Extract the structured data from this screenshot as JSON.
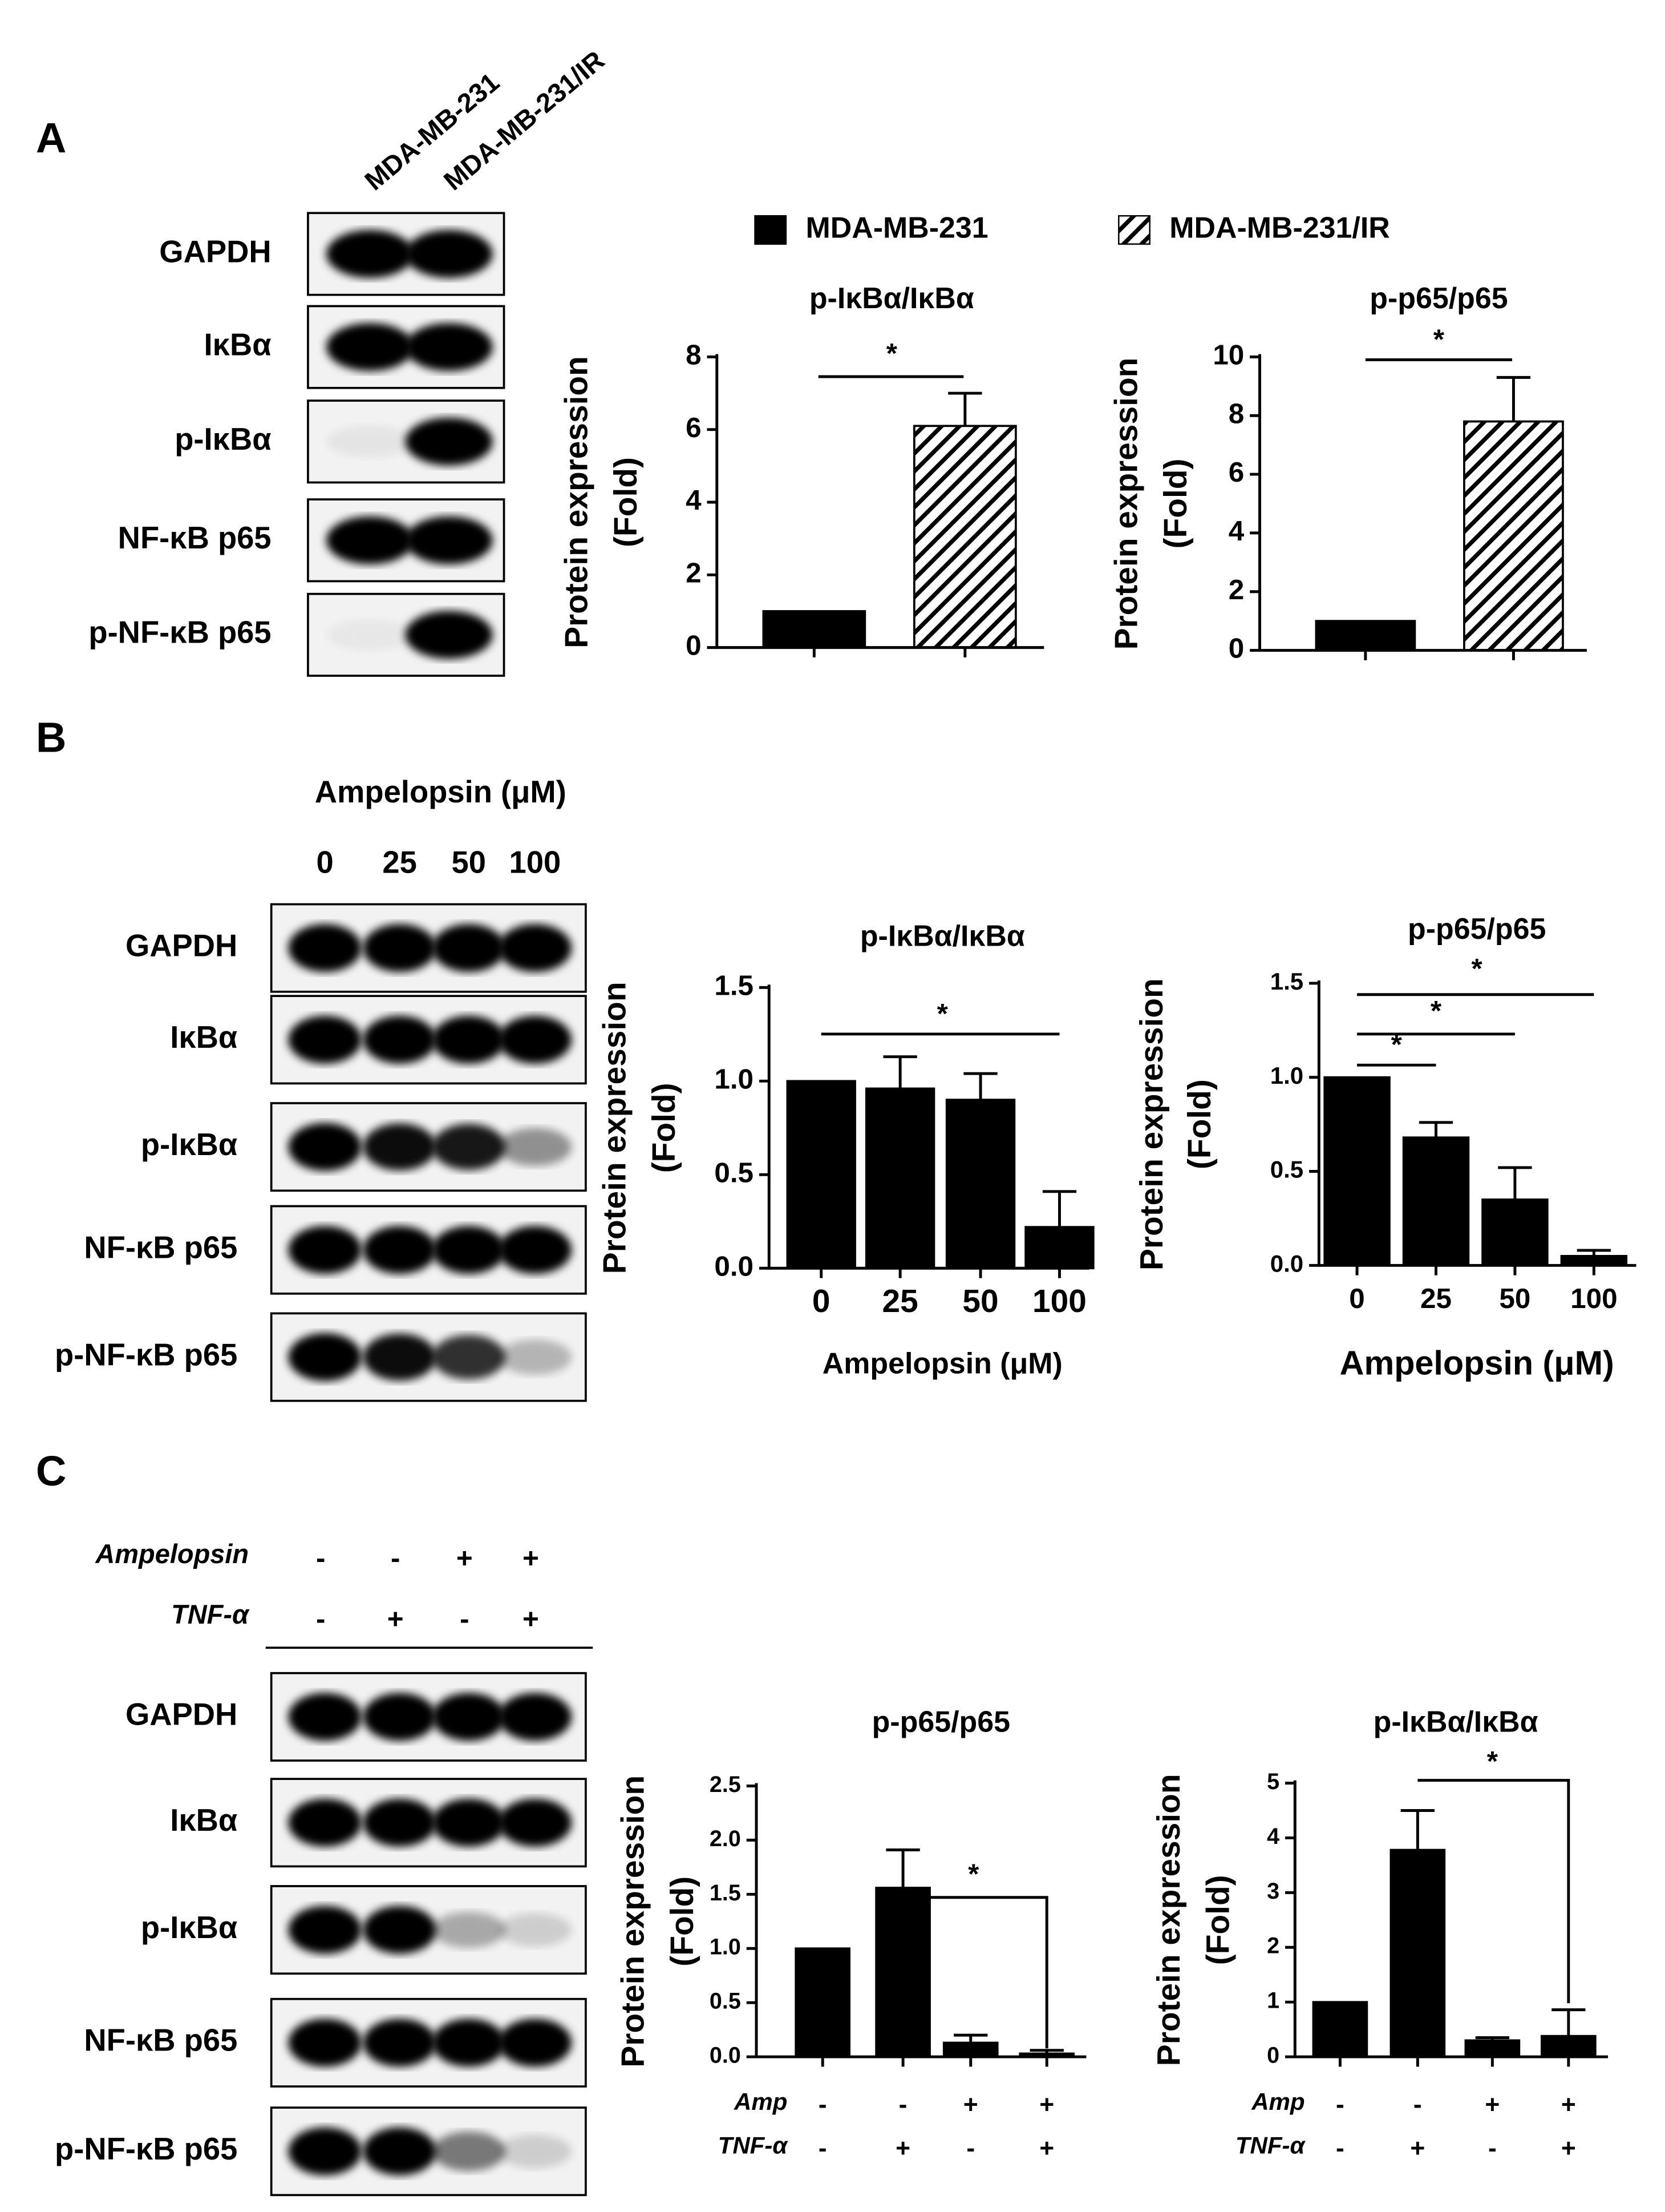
{
  "panels": [
    {
      "label": "A",
      "lanes": [
        "MDA-MB-231",
        "MDA-MB-231/IR"
      ],
      "rows": [
        "GAPDH",
        "IκBα",
        "p-IκBα",
        "NF-κB p65",
        "p-NF-κB p65"
      ]
    },
    {
      "label": "B",
      "lane_title": "Ampelopsin (μM)",
      "lanes": [
        "0",
        "25",
        "50",
        "100"
      ],
      "rows": [
        "GAPDH",
        "IκBα",
        "p-IκBα",
        "NF-κB p65",
        "p-NF-κB p65"
      ]
    },
    {
      "label": "C",
      "treatments": [
        {
          "name": "Ampelopsin",
          "signs": [
            "-",
            "-",
            "+",
            "+"
          ]
        },
        {
          "name": "TNF-α",
          "signs": [
            "-",
            "+",
            "-",
            "+"
          ]
        }
      ],
      "rows": [
        "GAPDH",
        "IκBα",
        "p-IκBα",
        "NF-κB p65",
        "p-NF-κB p65"
      ]
    }
  ],
  "chart_data": [
    {
      "type": "bar",
      "title": "p-IκBα/IκBα",
      "ylabel": [
        "Protein expression",
        "(Fold)"
      ],
      "categories": [
        null,
        null
      ],
      "series": [
        {
          "name": "MDA-MB-231",
          "color": "#000000",
          "values": [
            1,
            null
          ],
          "error": [
            null,
            null
          ]
        },
        {
          "name": "MDA-MB-231/IR",
          "color": "#000000",
          "pattern": "hatch",
          "values": [
            null,
            6.1
          ],
          "error": [
            null,
            0.9
          ]
        }
      ],
      "ylim": [
        0,
        8
      ],
      "yticks": [
        0,
        2,
        4,
        6,
        8
      ],
      "significance": [
        "*"
      ]
    },
    {
      "type": "bar",
      "title": "p-p65/p65",
      "ylabel": [
        "Protein expression",
        "(Fold)"
      ],
      "categories": [
        null,
        null
      ],
      "series": [
        {
          "color": "#000000",
          "values": [
            1,
            null
          ],
          "error": [
            null,
            null
          ]
        },
        {
          "color": "#000000",
          "pattern": "hatch",
          "values": [
            null,
            7.8
          ],
          "error": [
            null,
            1.5
          ]
        }
      ],
      "ylim": [
        0,
        10
      ],
      "yticks": [
        0,
        2,
        4,
        6,
        8,
        10
      ],
      "significance": [
        "*"
      ]
    },
    {
      "type": "bar",
      "title": "p-IκBα/IκBα",
      "ylabel": [
        "Protein expression",
        "(Fold)"
      ],
      "xlabel": "Ampelopsin (μM)",
      "categories": [
        "0",
        "25",
        "50",
        "100"
      ],
      "series": [
        {
          "color": "#000000",
          "values": [
            1.0,
            0.96,
            0.9,
            0.22
          ],
          "error": [
            null,
            0.17,
            0.14,
            0.19
          ]
        }
      ],
      "ylim": [
        0,
        1.5
      ],
      "yticks": [
        {
          "value": 0,
          "label": "0.0"
        },
        {
          "value": 0.5,
          "label": "0.5"
        },
        {
          "value": 1,
          "label": "1.0"
        },
        {
          "value": 1.5,
          "label": "1.5"
        }
      ],
      "significance": [
        "*"
      ]
    },
    {
      "type": "bar",
      "title": "p-p65/p65",
      "ylabel": [
        "Protein expression",
        "(Fold)"
      ],
      "xlabel": "Ampelopsin (μM)",
      "categories": [
        "0",
        "25",
        "50",
        "100"
      ],
      "series": [
        {
          "color": "#000000",
          "values": [
            1.0,
            0.68,
            0.35,
            0.05
          ],
          "error": [
            null,
            0.08,
            0.17,
            0.03
          ]
        }
      ],
      "ylim": [
        0,
        1.5
      ],
      "yticks": [
        {
          "value": 0,
          "label": "0.0"
        },
        {
          "value": 0.5,
          "label": "0.5"
        },
        {
          "value": 1,
          "label": "1.0"
        },
        {
          "value": 1.5,
          "label": "1.5"
        }
      ],
      "significance": [
        "*",
        "*",
        "*"
      ]
    },
    {
      "type": "bar",
      "title": "p-p65/p65",
      "ylabel": [
        "Protein expression",
        "(Fold)"
      ],
      "categories": [
        null,
        null,
        null,
        null
      ],
      "conditions": [
        {
          "name": "Amp",
          "signs": [
            "-",
            "-",
            "+",
            "+"
          ]
        },
        {
          "name": "TNF-α",
          "signs": [
            "-",
            "+",
            "-",
            "+"
          ]
        }
      ],
      "series": [
        {
          "color": "#000000",
          "values": [
            1.0,
            1.56,
            0.13,
            0.03
          ],
          "error": [
            null,
            0.35,
            0.07,
            0.03
          ]
        }
      ],
      "ylim": [
        0,
        2.5
      ],
      "yticks": [
        {
          "value": 0,
          "label": "0.0"
        },
        {
          "value": 0.5,
          "label": "0.5"
        },
        {
          "value": 1,
          "label": "1.0"
        },
        {
          "value": 1.5,
          "label": "1.5"
        },
        {
          "value": 2,
          "label": "2.0"
        },
        {
          "value": 2.5,
          "label": "2.5"
        }
      ],
      "significance": [
        "*"
      ]
    },
    {
      "type": "bar",
      "title": "p-IκBα/IκBα",
      "ylabel": [
        "Protein expression",
        "(Fold)"
      ],
      "categories": [
        null,
        null,
        null,
        null
      ],
      "conditions": [
        {
          "name": "Amp",
          "signs": [
            "-",
            "-",
            "+",
            "+"
          ]
        },
        {
          "name": "TNF-α",
          "signs": [
            "-",
            "+",
            "-",
            "+"
          ]
        }
      ],
      "series": [
        {
          "color": "#000000",
          "values": [
            1,
            3.78,
            0.3,
            0.38
          ],
          "error": [
            null,
            0.72,
            0.05,
            0.48
          ]
        }
      ],
      "ylim": [
        0,
        5
      ],
      "yticks": [
        0,
        1,
        2,
        3,
        4,
        5
      ],
      "significance": [
        "*"
      ]
    }
  ]
}
